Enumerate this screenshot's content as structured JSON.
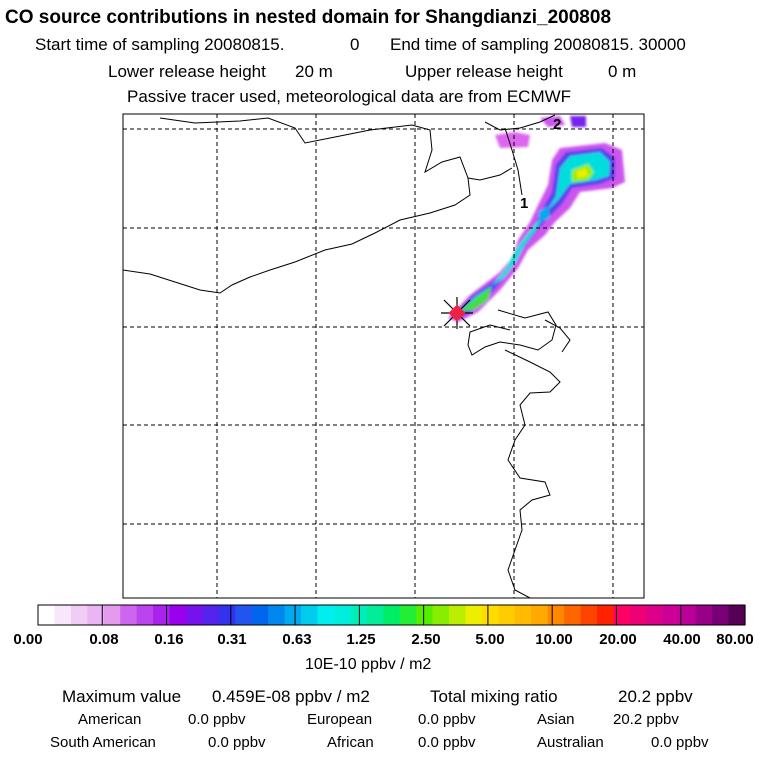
{
  "header": {
    "title": "CO  source contributions in nested domain for Shangdianzi_200808",
    "start_label": "Start time of sampling 20080815.",
    "start_value": "0",
    "end_label": "End time of sampling 20080815. 30000",
    "lower_label": "Lower release height",
    "lower_value": "20 m",
    "upper_label": "Upper release height",
    "upper_value": "0 m",
    "note": "Passive tracer used, meteorological data are from ECMWF"
  },
  "chart_data": {
    "type": "heatmap",
    "title": "CO  source contributions in nested domain for Shangdianzi_200808",
    "contour_labels": [
      "1",
      "2"
    ],
    "colorbar": {
      "ticks": [
        "0.00",
        "0.08",
        "0.16",
        "0.31",
        "0.63",
        "1.25",
        "2.50",
        "5.00",
        "10.00",
        "20.00",
        "40.00",
        "80.00"
      ],
      "unit": "10E-10 ppbv / m2",
      "colors": [
        "#ffffff",
        "#f8e6fb",
        "#f1cdf6",
        "#ebb4f2",
        "#e49bed",
        "#cc66ee",
        "#bb44ee",
        "#aa22ee",
        "#9900ee",
        "#7711ee",
        "#5522ee",
        "#3333ee",
        "#2255ee",
        "#0066ee",
        "#0088ee",
        "#00aaee",
        "#00ccee",
        "#00eeee",
        "#00eedd",
        "#00eebb",
        "#00ee99",
        "#00ee66",
        "#22ee33",
        "#55ee00",
        "#88ee00",
        "#bbee00",
        "#eeee00",
        "#ffdd00",
        "#ffcc00",
        "#ffbb00",
        "#ffaa00",
        "#ff8800",
        "#ff6600",
        "#ff4400",
        "#ff2200",
        "#ff0066",
        "#ee0077",
        "#dd0088",
        "#cc0099",
        "#bb0099",
        "#990088",
        "#770077",
        "#550055"
      ]
    },
    "stats": {
      "max_label": "Maximum value",
      "max_value": "0.459E-08 ppbv / m2",
      "total_label": "Total mixing ratio",
      "total_value": "20.2 ppbv",
      "regions": [
        {
          "name": "American",
          "value": "0.0 ppbv"
        },
        {
          "name": "European",
          "value": "0.0 ppbv"
        },
        {
          "name": "Asian",
          "value": "20.2 ppbv"
        },
        {
          "name": "South American",
          "value": "0.0 ppbv"
        },
        {
          "name": "African",
          "value": "0.0 ppbv"
        },
        {
          "name": "Australian",
          "value": "0.0 ppbv"
        }
      ]
    }
  }
}
